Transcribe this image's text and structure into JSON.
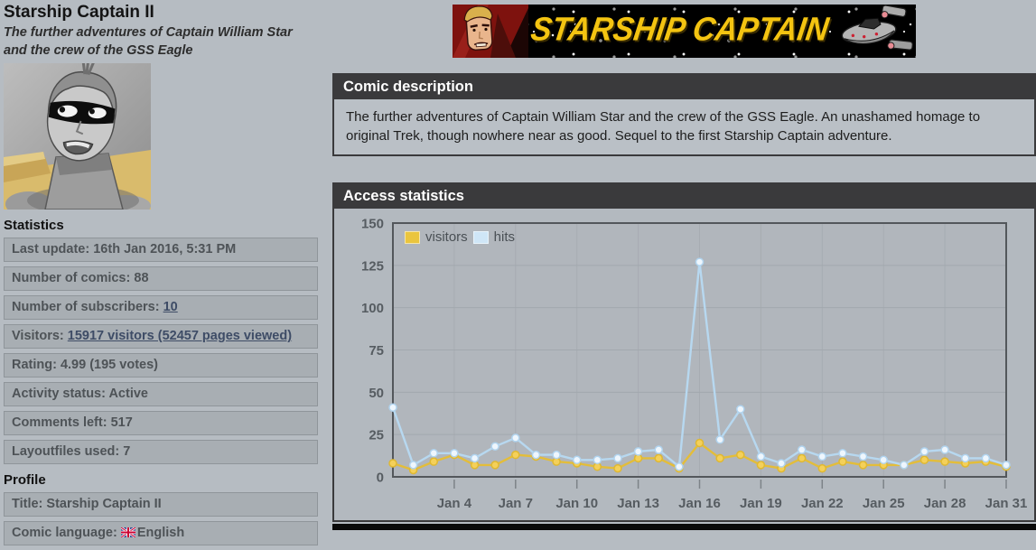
{
  "page": {
    "title": "Starship Captain II",
    "subtitle": "The further adventures of Captain William Star and the crew of the GSS Eagle"
  },
  "banner": {
    "text": "STARSHIP CAPTAIN"
  },
  "sidebar": {
    "statistics_heading": "Statistics",
    "profile_heading": "Profile",
    "stats": [
      {
        "label": "Last update:",
        "value": "16th Jan 2016, 5:31 PM"
      },
      {
        "label": "Number of comics:",
        "value": "88"
      },
      {
        "label": "Number of subscribers:",
        "value": "10"
      },
      {
        "label": "Visitors:",
        "value": "15917 visitors (52457 pages viewed)"
      },
      {
        "label": "Rating:",
        "value": "4.99 (195 votes)"
      },
      {
        "label": "Activity status:",
        "value": "Active"
      },
      {
        "label": "Comments left:",
        "value": "517"
      },
      {
        "label": "Layoutfiles used:",
        "value": "7"
      }
    ],
    "profile": [
      {
        "label": "Title:",
        "value": "Starship Captain II"
      },
      {
        "label": "Comic language:",
        "value": "English"
      }
    ]
  },
  "description": {
    "header": "Comic description",
    "body": "The further adventures of Captain William Star and the crew of the GSS Eagle. An unashamed homage to original Trek, though nowhere near as good. Sequel to the first Starship Captain adventure."
  },
  "access": {
    "header": "Access statistics"
  },
  "chart_data": {
    "type": "line",
    "title": "Access statistics",
    "xlabel": "",
    "ylabel": "",
    "ylim": [
      0,
      150
    ],
    "yticks": [
      0,
      25,
      50,
      75,
      100,
      125,
      150
    ],
    "grid": true,
    "legend_position": "top-left",
    "x_days": [
      1,
      2,
      3,
      4,
      5,
      6,
      7,
      8,
      9,
      10,
      11,
      12,
      13,
      14,
      15,
      16,
      17,
      18,
      19,
      20,
      21,
      22,
      23,
      24,
      25,
      26,
      27,
      28,
      29,
      30,
      31
    ],
    "x_ticks": {
      "days": [
        4,
        7,
        10,
        13,
        16,
        19,
        22,
        25,
        28,
        31
      ],
      "labels": [
        "Jan 4",
        "Jan 7",
        "Jan 10",
        "Jan 13",
        "Jan 16",
        "Jan 19",
        "Jan 22",
        "Jan 25",
        "Jan 28",
        "Jan 31"
      ]
    },
    "series": [
      {
        "name": "visitors",
        "color": "#e3bd3a",
        "point_fill": "#f4d05a",
        "point_stroke": "#dfb832",
        "legend_swatch": "#eac53e",
        "values": [
          8,
          4,
          9,
          13,
          7,
          7,
          13,
          12,
          9,
          8,
          6,
          5,
          11,
          11,
          5,
          20,
          11,
          13,
          7,
          5,
          11,
          5,
          9,
          7,
          7,
          7,
          10,
          9,
          8,
          9,
          6
        ]
      },
      {
        "name": "hits",
        "color": "#b7d8f0",
        "point_fill": "#eef6fd",
        "point_stroke": "#b0d3ee",
        "legend_swatch": "#cfe6f7",
        "values": [
          41,
          7,
          14,
          14,
          11,
          18,
          23,
          13,
          13,
          10,
          10,
          11,
          15,
          16,
          6,
          127,
          22,
          40,
          12,
          8,
          16,
          12,
          14,
          12,
          10,
          7,
          15,
          16,
          11,
          11,
          7
        ]
      }
    ]
  }
}
